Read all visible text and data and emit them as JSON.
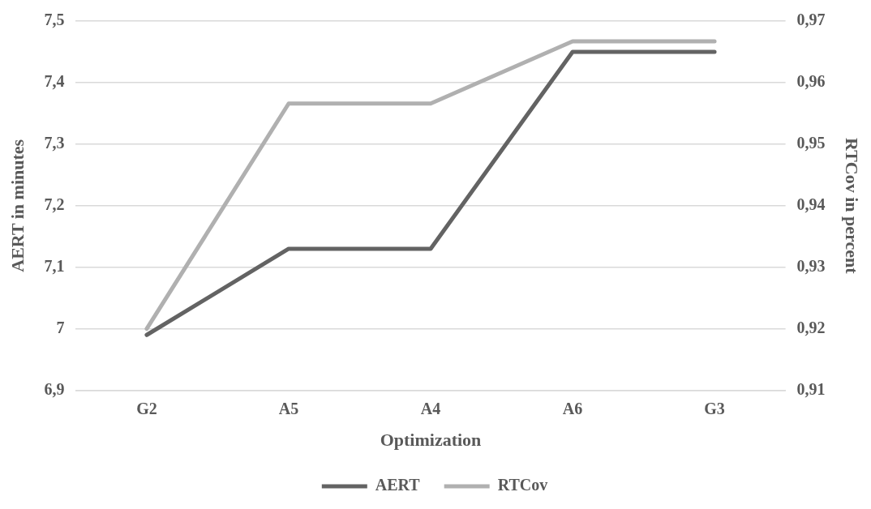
{
  "chart_data": {
    "type": "line",
    "xlabel": "Optimization",
    "ylabel": "AERT in minutes",
    "y2label": "RTCov in percent",
    "categories": [
      "G2",
      "A5",
      "A4",
      "A6",
      "G3"
    ],
    "series": [
      {
        "name": "AERT",
        "color": "#636363",
        "values": [
          6.99,
          7.13,
          7.13,
          7.45,
          7.45
        ]
      },
      {
        "name": "RTCov",
        "color": "#b0b0b0",
        "axis": "y2",
        "values": [
          0.92,
          0.9566,
          0.9566,
          0.9667,
          0.9667
        ]
      }
    ],
    "ylim": [
      6.9,
      7.5
    ],
    "yticks": [
      {
        "value": 6.9,
        "label": "6,9"
      },
      7,
      {
        "value": 7.1,
        "label": "7,1"
      },
      {
        "value": 7.2,
        "label": "7,2"
      },
      {
        "value": 7.3,
        "label": "7,3"
      },
      {
        "value": 7.4,
        "label": "7,4"
      },
      {
        "value": 7.5,
        "label": "7,5"
      }
    ],
    "y2lim": [
      0.91,
      0.97
    ],
    "y2ticks": [
      {
        "value": 0.91,
        "label": "0,91"
      },
      {
        "value": 0.92,
        "label": "0,92"
      },
      {
        "value": 0.93,
        "label": "0,93"
      },
      {
        "value": 0.94,
        "label": "0,94"
      },
      {
        "value": 0.95,
        "label": "0,95"
      },
      {
        "value": 0.96,
        "label": "0,96"
      },
      {
        "value": 0.97,
        "label": "0,97"
      }
    ],
    "grid": "y",
    "legend": "bottom",
    "marker": "none",
    "line_style": "solid"
  }
}
